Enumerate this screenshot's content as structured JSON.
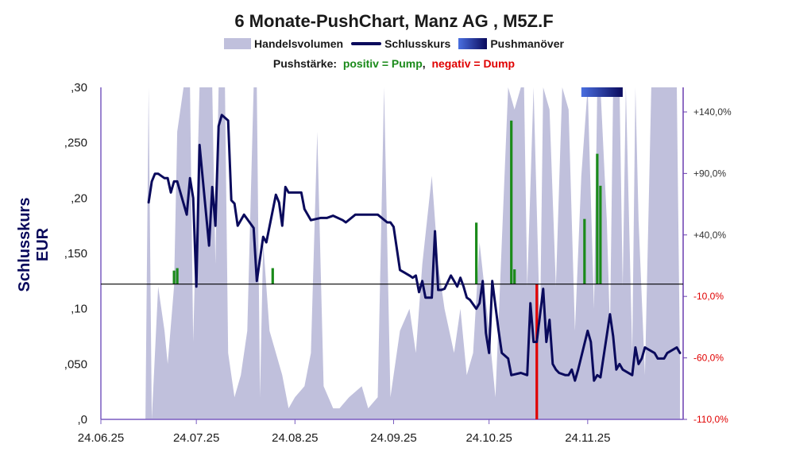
{
  "chart_data": {
    "type": "line",
    "title": "6 Monate-PushChart, Manz AG , M5Z.F",
    "legend": {
      "position": "top-center",
      "entries": [
        "Handelsvolumen",
        "Schlusskurs",
        "Pushmanöver"
      ]
    },
    "push_caption": {
      "label": "Pushstärke:",
      "positive": "positiv = Pump",
      "separator": ",",
      "negative": "negativ = Dump"
    },
    "ylabel": "Schlusskurs EUR",
    "y_left": {
      "range": [
        0,
        0.3
      ],
      "ticks": [
        0,
        0.05,
        0.1,
        0.15,
        0.2,
        0.25,
        0.3
      ],
      "tick_labels": [
        ",0",
        ",050",
        ",10",
        ",150",
        ",20",
        ",250",
        ",30"
      ]
    },
    "y_right": {
      "range": [
        -110,
        160
      ],
      "ticks": [
        -110,
        -60,
        -10,
        40,
        90,
        140
      ],
      "tick_labels": [
        "-110,0%",
        "-60,0%",
        "-10,0%",
        "+40,0%",
        "+90,0%",
        "+140,0%"
      ]
    },
    "x_axis": {
      "start": "2025-06-24",
      "end": "2025-12-24",
      "ticks": [
        "2025-06-24",
        "2025-07-24",
        "2025-08-24",
        "2025-09-24",
        "2025-10-24",
        "2025-11-24"
      ],
      "tick_labels": [
        "24.06.25",
        "24.07.25",
        "24.08.25",
        "24.09.25",
        "24.10.25",
        "24.11.25"
      ]
    },
    "reference_line_pct": 0,
    "colors": {
      "price": "#0a0a5c",
      "volume": "#c0c0dc",
      "pump": "#1a8a1a",
      "dump": "#e00000",
      "axis_right": "#6a3fb0",
      "reference": "#000000"
    },
    "series": [
      {
        "name": "Schlusskurs",
        "x": [
          "2025-07-09",
          "2025-07-10",
          "2025-07-11",
          "2025-07-12",
          "2025-07-14",
          "2025-07-15",
          "2025-07-16",
          "2025-07-17",
          "2025-07-18",
          "2025-07-21",
          "2025-07-22",
          "2025-07-23",
          "2025-07-24",
          "2025-07-25",
          "2025-07-28",
          "2025-07-29",
          "2025-07-30",
          "2025-07-31",
          "2025-08-01",
          "2025-08-03",
          "2025-08-04",
          "2025-08-05",
          "2025-08-06",
          "2025-08-08",
          "2025-08-11",
          "2025-08-12",
          "2025-08-13",
          "2025-08-14",
          "2025-08-15",
          "2025-08-18",
          "2025-08-19",
          "2025-08-20",
          "2025-08-21",
          "2025-08-22",
          "2025-08-25",
          "2025-08-26",
          "2025-08-27",
          "2025-08-29",
          "2025-09-01",
          "2025-09-02",
          "2025-09-03",
          "2025-09-05",
          "2025-09-08",
          "2025-09-09",
          "2025-09-12",
          "2025-09-15",
          "2025-09-19",
          "2025-09-22",
          "2025-09-23",
          "2025-09-24",
          "2025-09-26",
          "2025-09-29",
          "2025-09-30",
          "2025-10-01",
          "2025-10-02",
          "2025-10-03",
          "2025-10-04",
          "2025-10-06",
          "2025-10-07",
          "2025-10-08",
          "2025-10-09",
          "2025-10-10",
          "2025-10-12",
          "2025-10-13",
          "2025-10-14",
          "2025-10-15",
          "2025-10-16",
          "2025-10-17",
          "2025-10-18",
          "2025-10-20",
          "2025-10-21",
          "2025-10-22",
          "2025-10-23",
          "2025-10-24",
          "2025-10-25",
          "2025-10-27",
          "2025-10-28",
          "2025-10-30",
          "2025-10-31",
          "2025-11-03",
          "2025-11-05",
          "2025-11-06",
          "2025-11-07",
          "2025-11-08",
          "2025-11-10",
          "2025-11-11",
          "2025-11-12",
          "2025-11-13",
          "2025-11-14",
          "2025-11-15",
          "2025-11-17",
          "2025-11-18",
          "2025-11-19",
          "2025-11-20",
          "2025-11-21",
          "2025-11-24",
          "2025-11-25",
          "2025-11-26",
          "2025-11-27",
          "2025-11-28",
          "2025-12-01",
          "2025-12-02",
          "2025-12-03",
          "2025-12-04",
          "2025-12-05",
          "2025-12-08",
          "2025-12-09",
          "2025-12-10",
          "2025-12-11",
          "2025-12-12",
          "2025-12-15",
          "2025-12-16",
          "2025-12-17",
          "2025-12-18",
          "2025-12-19",
          "2025-12-22",
          "2025-12-23"
        ],
        "values": [
          0.196,
          0.215,
          0.222,
          0.222,
          0.218,
          0.218,
          0.205,
          0.215,
          0.215,
          0.185,
          0.218,
          0.2,
          0.12,
          0.248,
          0.157,
          0.21,
          0.175,
          0.265,
          0.275,
          0.27,
          0.198,
          0.195,
          0.175,
          0.185,
          0.173,
          0.125,
          0.145,
          0.165,
          0.16,
          0.203,
          0.196,
          0.175,
          0.21,
          0.205,
          0.205,
          0.205,
          0.19,
          0.18,
          0.182,
          0.182,
          0.182,
          0.184,
          0.18,
          0.178,
          0.185,
          0.185,
          0.185,
          0.178,
          0.178,
          0.174,
          0.135,
          0.13,
          0.128,
          0.13,
          0.115,
          0.125,
          0.11,
          0.11,
          0.17,
          0.117,
          0.117,
          0.118,
          0.13,
          0.125,
          0.12,
          0.128,
          0.12,
          0.11,
          0.108,
          0.1,
          0.105,
          0.125,
          0.078,
          0.06,
          0.125,
          0.08,
          0.06,
          0.055,
          0.04,
          0.042,
          0.04,
          0.105,
          0.07,
          0.07,
          0.118,
          0.07,
          0.09,
          0.05,
          0.045,
          0.042,
          0.04,
          0.04,
          0.045,
          0.035,
          0.045,
          0.08,
          0.07,
          0.035,
          0.04,
          0.038,
          0.095,
          0.075,
          0.045,
          0.05,
          0.045,
          0.04,
          0.065,
          0.05,
          0.055,
          0.065,
          0.06,
          0.055,
          0.055,
          0.055,
          0.06,
          0.065,
          0.06
        ]
      },
      {
        "name": "Handelsvolumen",
        "x": [
          "2025-06-24",
          "2025-07-08",
          "2025-07-09",
          "2025-07-10",
          "2025-07-12",
          "2025-07-14",
          "2025-07-15",
          "2025-07-17",
          "2025-07-18",
          "2025-07-19",
          "2025-07-20",
          "2025-07-22",
          "2025-07-23",
          "2025-07-25",
          "2025-07-26",
          "2025-07-29",
          "2025-07-30",
          "2025-07-31",
          "2025-08-02",
          "2025-08-03",
          "2025-08-05",
          "2025-08-07",
          "2025-08-09",
          "2025-08-11",
          "2025-08-12",
          "2025-08-13",
          "2025-08-14",
          "2025-08-16",
          "2025-08-18",
          "2025-08-20",
          "2025-08-22",
          "2025-08-24",
          "2025-08-27",
          "2025-08-29",
          "2025-08-31",
          "2025-09-02",
          "2025-09-05",
          "2025-09-07",
          "2025-09-10",
          "2025-09-14",
          "2025-09-16",
          "2025-09-19",
          "2025-09-21",
          "2025-09-23",
          "2025-09-26",
          "2025-09-29",
          "2025-10-01",
          "2025-10-03",
          "2025-10-06",
          "2025-10-08",
          "2025-10-10",
          "2025-10-13",
          "2025-10-15",
          "2025-10-17",
          "2025-10-19",
          "2025-10-21",
          "2025-10-24",
          "2025-10-26",
          "2025-10-28",
          "2025-10-30",
          "2025-11-01",
          "2025-11-03",
          "2025-11-04",
          "2025-11-05",
          "2025-11-07",
          "2025-11-09",
          "2025-11-10",
          "2025-11-12",
          "2025-11-14",
          "2025-11-16",
          "2025-11-18",
          "2025-11-20",
          "2025-11-22",
          "2025-11-24",
          "2025-11-26",
          "2025-11-27",
          "2025-11-28",
          "2025-11-30",
          "2025-12-01",
          "2025-12-02",
          "2025-12-04",
          "2025-12-05",
          "2025-12-06",
          "2025-12-08",
          "2025-12-09",
          "2025-12-10",
          "2025-12-12",
          "2025-12-14",
          "2025-12-16",
          "2025-12-18",
          "2025-12-20",
          "2025-12-22",
          "2025-12-23"
        ],
        "values": [
          0,
          0,
          0.3,
          0,
          0.12,
          0.08,
          0.05,
          0.12,
          0.26,
          0.28,
          0.3,
          0.3,
          0.07,
          0.3,
          0.3,
          0.3,
          0.14,
          0.3,
          0.3,
          0.06,
          0.02,
          0.04,
          0.08,
          0.3,
          0.3,
          0.02,
          0.16,
          0.08,
          0.06,
          0.04,
          0.01,
          0.02,
          0.03,
          0.06,
          0.26,
          0.03,
          0.01,
          0.01,
          0.02,
          0.03,
          0.01,
          0.02,
          0.3,
          0.02,
          0.08,
          0.1,
          0.06,
          0.14,
          0.22,
          0.14,
          0.1,
          0.06,
          0.1,
          0.04,
          0.06,
          0.16,
          0.08,
          0.02,
          0.16,
          0.3,
          0.28,
          0.3,
          0.3,
          0.12,
          0.3,
          0.08,
          0.3,
          0.28,
          0.12,
          0.3,
          0.28,
          0.08,
          0.22,
          0.3,
          0.1,
          0.3,
          0.3,
          0.18,
          0.08,
          0.3,
          0.3,
          0.12,
          0.3,
          0.06,
          0.3,
          0.18,
          0.04,
          0.3,
          0.3,
          0.3,
          0.3,
          0.3,
          0.05
        ]
      },
      {
        "name": "Pushstärke",
        "x": [
          "2025-07-17",
          "2025-07-18",
          "2025-08-17",
          "2025-10-20",
          "2025-10-31",
          "2025-11-01",
          "2025-11-08",
          "2025-11-23",
          "2025-11-27",
          "2025-11-28"
        ],
        "values": [
          11,
          13,
          13,
          50,
          133,
          12,
          -110,
          53,
          106,
          80
        ]
      }
    ],
    "push_maneuver": {
      "from": "2025-11-22",
      "to": "2025-12-05"
    }
  }
}
